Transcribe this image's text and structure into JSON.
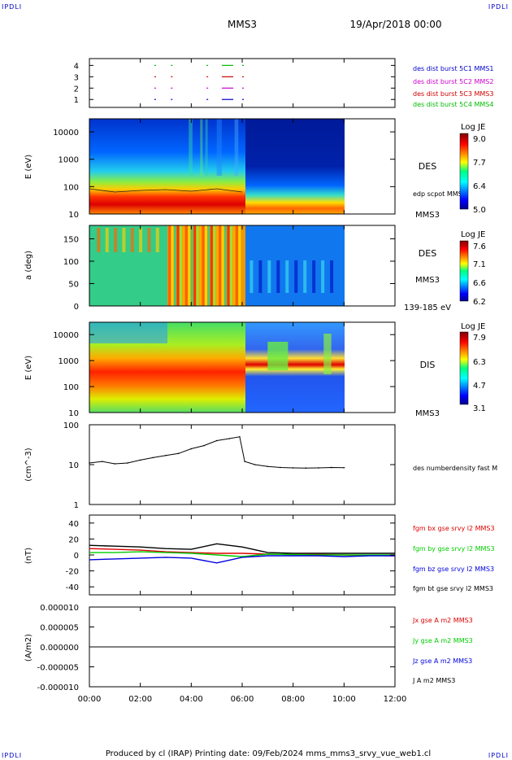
{
  "header": {
    "corner_tl": "IPDLI",
    "corner_tr": "IPDLI",
    "corner_bl": "IPDLI",
    "corner_br": "IPDLI",
    "spacecraft": "MMS3",
    "date": "19/Apr/2018 00:00"
  },
  "footer": {
    "text": "Produced by cl (IRAP)   Printing date: 09/Feb/2024   mms_mms3_srvy_vue_web1.cl"
  },
  "x_axis": {
    "ticks": [
      "00:00",
      "02:00",
      "04:00",
      "06:00",
      "08:00",
      "10:00",
      "12:00"
    ],
    "range_hours": [
      0,
      12
    ]
  },
  "colors": {
    "mms1": "#0000cc",
    "mms2": "#cc00cc",
    "mms3": "#cc0000",
    "mms4": "#00bb00",
    "bx": "#dd0000",
    "by": "#00cc00",
    "bz": "#0000dd",
    "bt": "#000000"
  },
  "chart_data": [
    {
      "type": "scatter",
      "panel": "burst_availability",
      "yticks": [
        "4",
        "3",
        "2",
        "1"
      ],
      "legend": [
        {
          "label": "des dist burst 5C1 MMS1",
          "color": "#0000cc"
        },
        {
          "label": "des dist burst 5C2 MMS2",
          "color": "#cc00cc"
        },
        {
          "label": "des dist burst 5C3 MMS3",
          "color": "#cc0000"
        },
        {
          "label": "des dist burst 5C4 MMS4",
          "color": "#00bb00"
        }
      ],
      "series": [
        {
          "name": "des dist burst 5C4 MMS4",
          "level": 4,
          "intervals_hours": [
            [
              2.55,
              2.6
            ],
            [
              3.2,
              3.25
            ],
            [
              4.6,
              4.65
            ],
            [
              5.2,
              5.65
            ],
            [
              6.0,
              6.05
            ]
          ]
        },
        {
          "name": "des dist burst 5C3 MMS3",
          "level": 3,
          "intervals_hours": [
            [
              2.55,
              2.6
            ],
            [
              3.2,
              3.25
            ],
            [
              4.6,
              4.65
            ],
            [
              5.2,
              5.65
            ],
            [
              6.0,
              6.05
            ]
          ]
        },
        {
          "name": "des dist burst 5C2 MMS2",
          "level": 2,
          "intervals_hours": [
            [
              2.55,
              2.6
            ],
            [
              3.2,
              3.25
            ],
            [
              4.6,
              4.65
            ],
            [
              5.2,
              5.65
            ],
            [
              6.0,
              6.05
            ]
          ]
        },
        {
          "name": "des dist burst 5C1 MMS1",
          "level": 1,
          "intervals_hours": [
            [
              2.55,
              2.6
            ],
            [
              3.2,
              3.25
            ],
            [
              4.6,
              4.65
            ],
            [
              5.2,
              5.65
            ],
            [
              6.0,
              6.05
            ]
          ]
        }
      ]
    },
    {
      "type": "heatmap",
      "panel": "des_energy",
      "ylabel": "E (eV)",
      "yticks": [
        "10000",
        "1000",
        "100",
        "10"
      ],
      "ylim_log": [
        10,
        30000
      ],
      "right_label": "DES",
      "right_sub": "MMS3",
      "inner_label": "edp scpot MMS3",
      "colorbar": {
        "title": "Log JE",
        "ticks": [
          "9.0",
          "7.7",
          "6.4",
          "5.0"
        ]
      },
      "data_end_hours": 10.0
    },
    {
      "type": "heatmap",
      "panel": "des_pitch",
      "ylabel": "a (deg)",
      "yticks": [
        "150",
        "100",
        "50",
        "0"
      ],
      "ylim": [
        0,
        180
      ],
      "right_label": "DES",
      "right_sub": "MMS3",
      "energy_label": "139-185 eV",
      "colorbar": {
        "title": "Log JE",
        "ticks": [
          "7.6",
          "7.1",
          "6.6",
          "6.2"
        ]
      },
      "data_end_hours": 10.0
    },
    {
      "type": "heatmap",
      "panel": "dis_energy",
      "ylabel": "E (eV)",
      "yticks": [
        "10000",
        "1000",
        "100",
        "10"
      ],
      "ylim_log": [
        10,
        30000
      ],
      "right_label": "DIS",
      "right_sub": "MMS3",
      "colorbar": {
        "title": "Log JE",
        "ticks": [
          "7.9",
          "6.3",
          "4.7",
          "3.1"
        ]
      },
      "data_end_hours": 10.0
    },
    {
      "type": "line",
      "panel": "density",
      "ylabel": "(cm^-3)",
      "yticks": [
        "100",
        "10",
        "1"
      ],
      "ylim_log": [
        1,
        100
      ],
      "series": [
        {
          "name": "des numberdensity fast M",
          "x": [
            0,
            0.5,
            1.0,
            1.5,
            2.0,
            2.5,
            3.0,
            3.5,
            4.0,
            4.5,
            5.0,
            5.5,
            5.9,
            6.1,
            6.5,
            7.0,
            7.5,
            8.0,
            8.5,
            9.0,
            9.5,
            10.0
          ],
          "y": [
            11,
            12,
            10.5,
            11,
            13,
            15,
            17,
            19,
            25,
            30,
            40,
            45,
            50,
            12,
            10,
            9,
            8.5,
            8.3,
            8.2,
            8.3,
            8.5,
            8.4
          ]
        }
      ]
    },
    {
      "type": "line",
      "panel": "magnetic_field",
      "ylabel": "(nT)",
      "yticks": [
        "40",
        "20",
        "0",
        "-20",
        "-40"
      ],
      "ylim": [
        -50,
        50
      ],
      "series": [
        {
          "name": "fgm bx gse srvy l2 MMS3",
          "x": [
            0,
            1,
            2,
            3,
            4,
            5,
            6,
            7,
            8,
            9,
            10,
            11,
            12
          ],
          "y": [
            8,
            7,
            6,
            4,
            3,
            2,
            2,
            1,
            0.5,
            0.5,
            0,
            -0.5,
            -1
          ]
        },
        {
          "name": "fgm by gse srvy l2 MMS3",
          "x": [
            0,
            1,
            2,
            3,
            4,
            5,
            6,
            7,
            8,
            9,
            10,
            11,
            12
          ],
          "y": [
            3,
            3,
            4,
            3,
            2,
            0,
            -2,
            1,
            0.5,
            0,
            0,
            0,
            0
          ]
        },
        {
          "name": "fgm bz gse srvy l2 MMS3",
          "x": [
            0,
            1,
            2,
            3,
            4,
            5,
            6,
            7,
            8,
            9,
            10,
            11,
            12
          ],
          "y": [
            -6,
            -5,
            -4,
            -3,
            -4,
            -10,
            -3,
            -1,
            -1,
            -1,
            -2,
            -1,
            -1
          ]
        },
        {
          "name": "fgm bt gse srvy l2 MMS3",
          "x": [
            0,
            1,
            2,
            3,
            4,
            5,
            6,
            7,
            8,
            9,
            10,
            11,
            12
          ],
          "y": [
            12,
            11,
            10,
            8,
            7,
            14,
            10,
            3,
            2,
            2,
            2,
            2,
            2
          ]
        }
      ]
    },
    {
      "type": "line",
      "panel": "current_density",
      "ylabel": "(A/m2)",
      "yticks": [
        "0.000010",
        "0.000005",
        "0.000000",
        "-0.000005",
        "-0.000010"
      ],
      "ylim": [
        -1e-05,
        1e-05
      ],
      "series": [
        {
          "name": "Jx gse A m2 MMS3",
          "x": [
            0,
            12
          ],
          "y": [
            0,
            0
          ]
        },
        {
          "name": "Jy gse A m2 MMS3",
          "x": [
            0,
            12
          ],
          "y": [
            0,
            0
          ]
        },
        {
          "name": "Jz gse A m2 MMS3",
          "x": [
            0,
            12
          ],
          "y": [
            0,
            0
          ]
        },
        {
          "name": "J A m2 MMS3",
          "x": [
            0,
            12
          ],
          "y": [
            0,
            0
          ]
        }
      ]
    }
  ]
}
